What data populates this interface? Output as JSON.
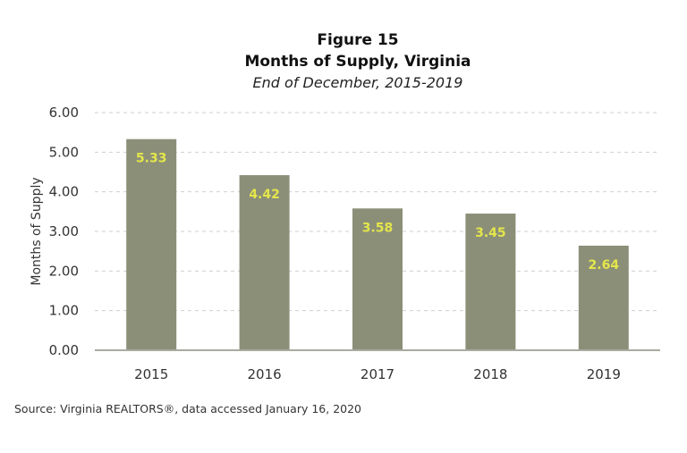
{
  "chart_data": {
    "type": "bar",
    "title": "Figure 15",
    "subtitle_line1": "Months of Supply, Virginia",
    "subtitle_line2": "End of December, 2015-2019",
    "ylabel": "Months of Supply",
    "xlabel": "",
    "categories": [
      "2015",
      "2016",
      "2017",
      "2018",
      "2019"
    ],
    "values": [
      5.33,
      4.42,
      3.58,
      3.45,
      2.64
    ],
    "data_labels": [
      "5.33",
      "4.42",
      "3.58",
      "3.45",
      "2.64"
    ],
    "ylim": [
      0,
      6
    ],
    "yticks": [
      "0.00",
      "1.00",
      "2.00",
      "3.00",
      "4.00",
      "5.00",
      "6.00"
    ],
    "grid": true,
    "legend": "none",
    "source": "Source: Virginia REALTORS®, data accessed January 16, 2020",
    "colors": {
      "bar": "#8b8f78",
      "data_label": "#e4e64a",
      "grid": "#cfcfcf",
      "axis": "#a9aba0"
    }
  }
}
